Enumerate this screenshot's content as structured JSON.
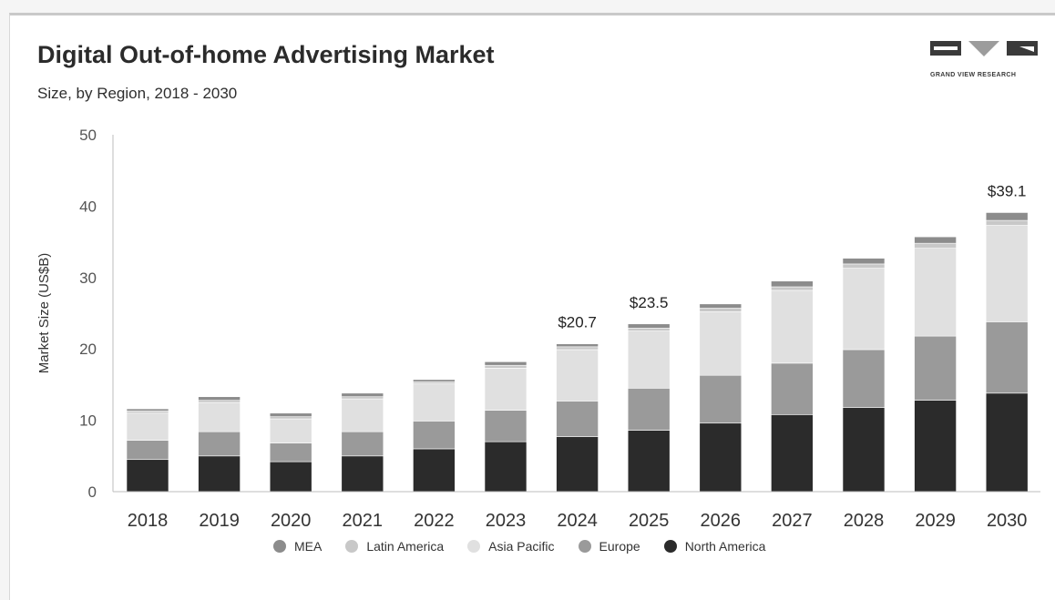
{
  "header": {
    "title": "Digital Out-of-home Advertising Market",
    "subtitle": "Size, by Region, 2018 - 2030"
  },
  "logo": {
    "text": "GRAND VIEW RESEARCH",
    "icon": "grand-view-research-logo"
  },
  "chart_data": {
    "type": "bar",
    "stacked": true,
    "title": "Digital Out-of-home Advertising Market",
    "subtitle": "Size, by Region, 2018 - 2030",
    "xlabel": "",
    "ylabel": "Market Size (US$B)",
    "ylim": [
      0,
      50
    ],
    "yticks": [
      0,
      10,
      20,
      30,
      40,
      50
    ],
    "grid": false,
    "legend_position": "bottom",
    "categories": [
      "2018",
      "2019",
      "2020",
      "2021",
      "2022",
      "2023",
      "2024",
      "2025",
      "2026",
      "2027",
      "2028",
      "2029",
      "2030"
    ],
    "series": [
      {
        "name": "North America",
        "color": "#2b2b2b",
        "values": [
          4.5,
          5.0,
          4.2,
          5.0,
          6.0,
          7.0,
          7.7,
          8.6,
          9.6,
          10.8,
          11.8,
          12.8,
          13.8
        ]
      },
      {
        "name": "Europe",
        "color": "#9a9a9a",
        "values": [
          2.7,
          3.4,
          2.6,
          3.4,
          3.9,
          4.4,
          5.0,
          5.9,
          6.7,
          7.2,
          8.1,
          9.0,
          10.0
        ]
      },
      {
        "name": "Asia Pacific",
        "color": "#e0e0e0",
        "values": [
          3.8,
          4.1,
          3.4,
          4.6,
          5.2,
          5.9,
          7.2,
          8.0,
          8.9,
          10.2,
          11.4,
          12.3,
          13.5
        ]
      },
      {
        "name": "Latin America",
        "color": "#c8c8c8",
        "values": [
          0.3,
          0.3,
          0.3,
          0.3,
          0.3,
          0.4,
          0.4,
          0.4,
          0.5,
          0.5,
          0.6,
          0.7,
          0.7
        ]
      },
      {
        "name": "MEA",
        "color": "#8c8c8c",
        "values": [
          0.3,
          0.5,
          0.5,
          0.5,
          0.3,
          0.5,
          0.4,
          0.6,
          0.6,
          0.8,
          0.8,
          0.9,
          1.1
        ]
      }
    ],
    "legend_order": [
      "MEA",
      "Latin America",
      "Asia Pacific",
      "Europe",
      "North America"
    ],
    "annotations": [
      {
        "category": "2024",
        "text": "$20.7"
      },
      {
        "category": "2025",
        "text": "$23.5"
      },
      {
        "category": "2030",
        "text": "$39.1"
      }
    ]
  }
}
